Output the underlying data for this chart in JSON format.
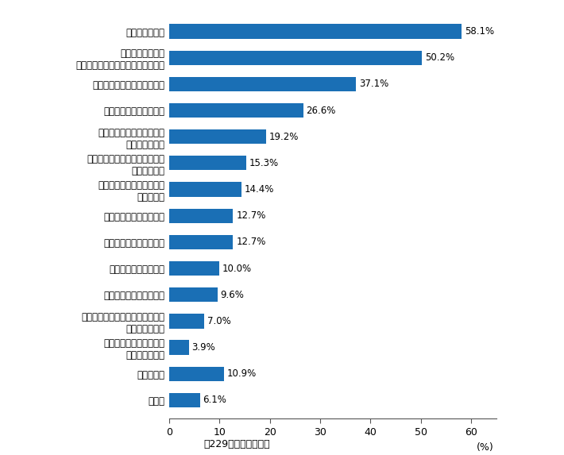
{
  "categories": [
    "症状が軽いから",
    "診察時や治療時に\nおしりを見せるのが恥ずかしいから",
    "市販の薬で十分だと思うから",
    "肛門科に入りづらいから",
    "良い病院・医院の選び方が\nわからないから",
    "痔は病院に行くほどの病気だと\n思わないから",
    "診察内容がわからないので\n不安だから",
    "女性の医師がいないから",
    "受診する時間がないから",
    "近くに病院がないから",
    "手術が痛そうで怖いから",
    "待合室で他の患者さんと会うのが\n恥ずかしいから",
    "どの科に行けばよいのか\nわからないから",
    "なんとなく",
    "その他"
  ],
  "values": [
    58.1,
    50.2,
    37.1,
    26.6,
    19.2,
    15.3,
    14.4,
    12.7,
    12.7,
    10.0,
    9.6,
    7.0,
    3.9,
    10.9,
    6.1
  ],
  "bar_color": "#1a6fb5",
  "percent_label_color_inside": "#ffffff",
  "percent_label_color_outside": "#000000",
  "footer": "（229人　複数回答）",
  "xlim": [
    0,
    65
  ],
  "xticks": [
    0,
    10,
    20,
    30,
    40,
    50,
    60
  ],
  "xlabel_text": "(%)",
  "bar_height": 0.55,
  "value_label_fontsize": 8.5,
  "category_fontsize": 8.5,
  "tick_fontsize": 9
}
